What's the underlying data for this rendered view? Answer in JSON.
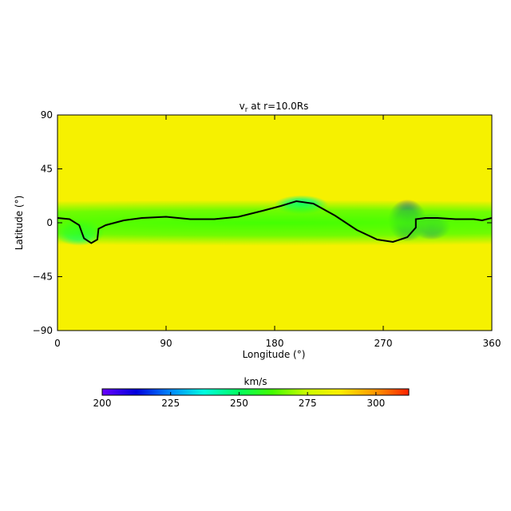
{
  "chart_data": {
    "type": "heatmap",
    "title_prefix": "v",
    "title_sub": "r",
    "title_suffix": " at r=10.0Rs",
    "xlabel": "Longitude (°)",
    "ylabel": "Latitude (°)",
    "xlim": [
      0,
      360
    ],
    "ylim": [
      -90,
      90
    ],
    "xticks": [
      0,
      90,
      180,
      270,
      360
    ],
    "yticks": [
      -90,
      -45,
      0,
      45,
      90
    ],
    "xtick_labels": [
      "0",
      "90",
      "180",
      "270",
      "360"
    ],
    "ytick_labels": [
      "−90",
      "−45",
      "0",
      "45",
      "90"
    ],
    "colorbar": {
      "label": "km/s",
      "range": [
        200,
        312
      ],
      "ticks": [
        200,
        225,
        250,
        275,
        300
      ],
      "tick_labels": [
        "200",
        "225",
        "250",
        "275",
        "300"
      ],
      "colors": [
        "#6a00ff",
        "#0000dd",
        "#0088ff",
        "#00ffe0",
        "#00ff60",
        "#44ff00",
        "#ccff00",
        "#ffee00",
        "#ff9900",
        "#ff2200"
      ]
    },
    "background_speed": 285,
    "features": [
      {
        "lon": 202,
        "lat": 15,
        "speed": 246,
        "extent_lon": 14,
        "extent_lat": 5
      },
      {
        "lon": 290,
        "lat": 2,
        "speed": 212,
        "extent_lon": 10,
        "extent_lat": 11
      },
      {
        "lon": 310,
        "lat": -3,
        "speed": 205,
        "extent_lon": 10,
        "extent_lat": 7
      },
      {
        "lon": 18,
        "lat": -8,
        "speed": 245,
        "extent_lon": 13,
        "extent_lat": 7
      },
      {
        "lon": 180,
        "lat": 0,
        "speed": 262,
        "extent_lon": 360,
        "extent_lat": 12
      }
    ],
    "neutral_line": [
      [
        0,
        4
      ],
      [
        10,
        3
      ],
      [
        18,
        -2
      ],
      [
        22,
        -13
      ],
      [
        28,
        -17
      ],
      [
        33,
        -14
      ],
      [
        34,
        -5
      ],
      [
        40,
        -2
      ],
      [
        55,
        2
      ],
      [
        70,
        4
      ],
      [
        90,
        5
      ],
      [
        110,
        3
      ],
      [
        130,
        3
      ],
      [
        150,
        5
      ],
      [
        170,
        10
      ],
      [
        185,
        14
      ],
      [
        198,
        18
      ],
      [
        212,
        16
      ],
      [
        230,
        6
      ],
      [
        248,
        -6
      ],
      [
        265,
        -14
      ],
      [
        278,
        -16
      ],
      [
        290,
        -12
      ],
      [
        297,
        -4
      ],
      [
        297,
        3
      ],
      [
        305,
        4
      ],
      [
        315,
        4
      ],
      [
        330,
        3
      ],
      [
        345,
        3
      ],
      [
        352,
        2
      ],
      [
        360,
        4
      ]
    ]
  }
}
